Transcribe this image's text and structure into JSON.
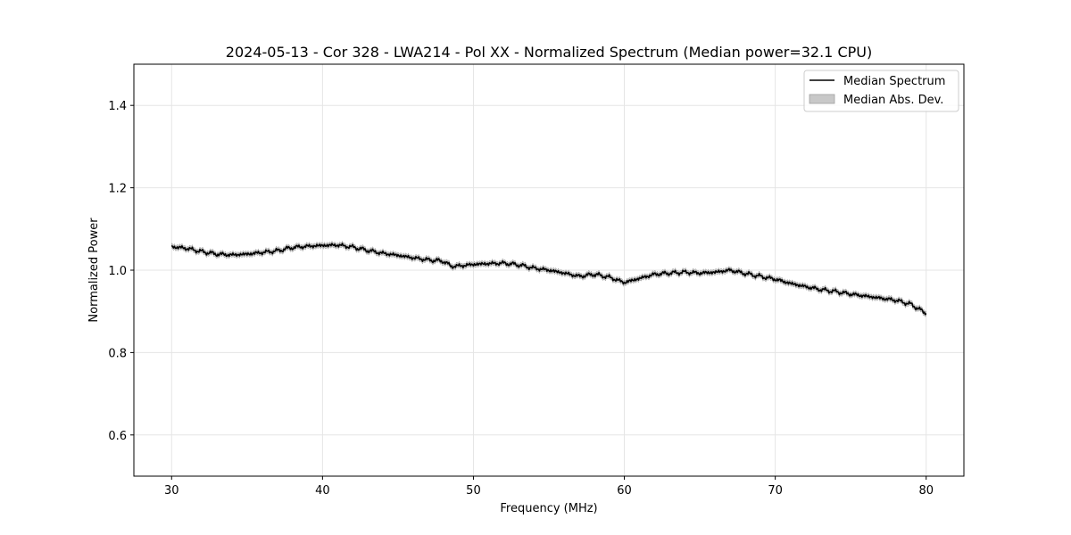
{
  "chart_data": {
    "type": "line",
    "title": "2024-05-13 - Cor 328 - LWA214 - Pol XX - Normalized Spectrum (Median power=32.1 CPU)",
    "xlabel": "Frequency (MHz)",
    "ylabel": "Normalized Power",
    "xlim": [
      27.5,
      82.5
    ],
    "ylim": [
      0.5,
      1.5
    ],
    "xticks": [
      30,
      40,
      50,
      60,
      70,
      80
    ],
    "xtick_labels": [
      "30",
      "40",
      "50",
      "60",
      "70",
      "80"
    ],
    "yticks": [
      0.6,
      0.8,
      1.0,
      1.2,
      1.4
    ],
    "ytick_labels": [
      "0.6",
      "0.8",
      "1.0",
      "1.2",
      "1.4"
    ],
    "grid": true,
    "legend_position": "top-right",
    "legend": [
      "Median Spectrum",
      "Median Abs. Dev."
    ],
    "series": [
      {
        "name": "Median Spectrum",
        "color": "#000000",
        "mad": 0.006,
        "x": [
          30,
          31,
          32,
          33,
          34,
          35,
          36,
          37,
          38,
          39,
          40,
          41,
          42,
          43,
          44,
          45,
          46,
          47,
          48,
          48.5,
          49,
          50,
          51,
          52,
          53,
          54,
          55,
          56,
          57,
          58,
          59,
          60,
          61,
          62,
          63,
          64,
          65,
          66,
          67,
          68,
          69,
          70,
          71,
          72,
          73,
          74,
          75,
          76,
          77,
          78,
          79,
          80
        ],
        "values": [
          1.057,
          1.053,
          1.045,
          1.039,
          1.037,
          1.039,
          1.043,
          1.047,
          1.055,
          1.058,
          1.06,
          1.061,
          1.056,
          1.048,
          1.041,
          1.036,
          1.03,
          1.025,
          1.022,
          1.01,
          1.01,
          1.014,
          1.016,
          1.017,
          1.013,
          1.005,
          1.0,
          0.993,
          0.985,
          0.99,
          0.983,
          0.97,
          0.98,
          0.99,
          0.993,
          0.995,
          0.993,
          0.995,
          1.0,
          0.992,
          0.985,
          0.978,
          0.968,
          0.96,
          0.953,
          0.948,
          0.942,
          0.937,
          0.932,
          0.927,
          0.917,
          0.895
        ]
      }
    ]
  }
}
